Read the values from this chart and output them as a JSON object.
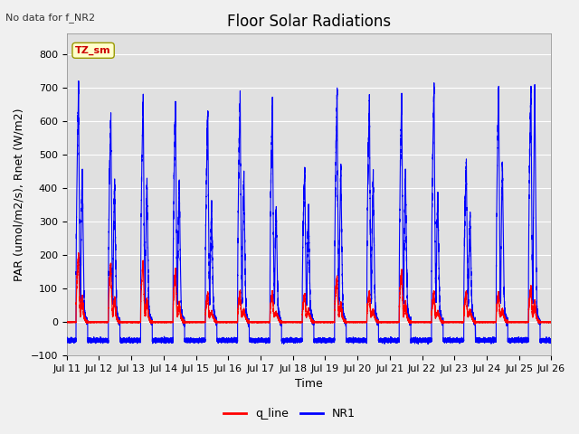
{
  "title": "Floor Solar Radiations",
  "xlabel": "Time",
  "ylabel": "PAR (umol/m2/s), Rnet (W/m2)",
  "no_data_text": "No data for f_NR2",
  "annotation_text": "TZ_sm",
  "ylim": [
    -100,
    860
  ],
  "yticks": [
    -100,
    0,
    100,
    200,
    300,
    400,
    500,
    600,
    700,
    800
  ],
  "num_days": 15,
  "xtick_labels": [
    "Jul 11",
    "Jul 12",
    "Jul 13",
    "Jul 14",
    "Jul 15",
    "Jul 16",
    "Jul 17",
    "Jul 18",
    "Jul 19",
    "Jul 20",
    "Jul 21",
    "Jul 22",
    "Jul 23",
    "Jul 24",
    "Jul 25",
    "Jul 26"
  ],
  "nr1_color": "#0000ff",
  "q_line_color": "#ff0000",
  "legend_entries": [
    "q_line",
    "NR1"
  ],
  "fig_bg_color": "#f0f0f0",
  "plot_bg_color": "#e0e0e0",
  "grid_color": "#ffffff",
  "title_fontsize": 12,
  "label_fontsize": 9,
  "tick_fontsize": 8,
  "nr1_peaks": [
    700,
    620,
    675,
    660,
    635,
    675,
    665,
    460,
    685,
    675,
    685,
    705,
    480,
    700,
    700
  ],
  "nr1_second_peaks": [
    460,
    425,
    430,
    420,
    350,
    450,
    340,
    340,
    470,
    450,
    450,
    390,
    320,
    480,
    700
  ],
  "q_peaks": [
    200,
    175,
    185,
    155,
    85,
    90,
    90,
    85,
    135,
    90,
    155,
    90,
    90,
    90,
    105
  ],
  "nr1_night": -55,
  "points_per_day": 1440
}
